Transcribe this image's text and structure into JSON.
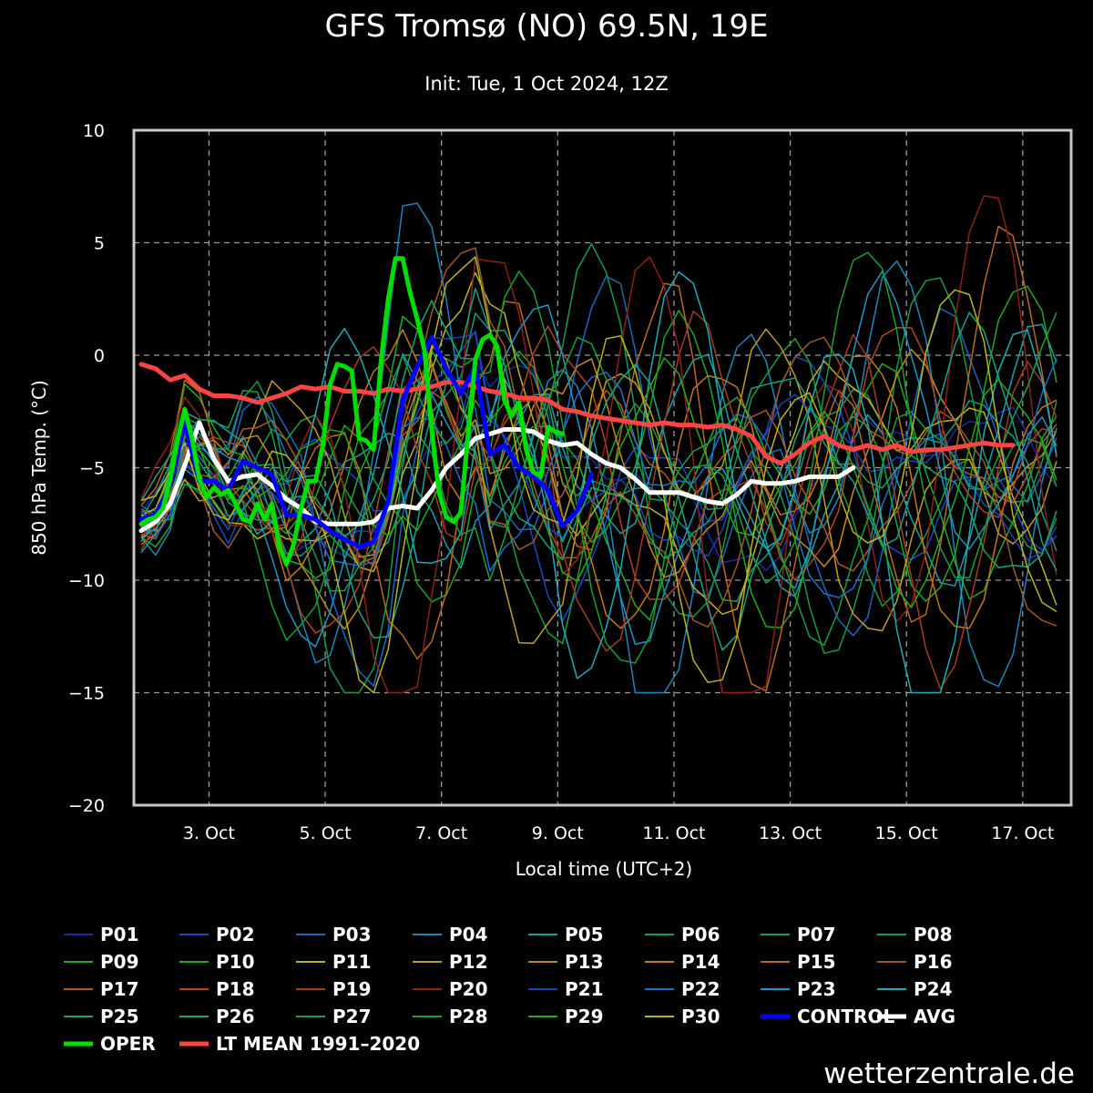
{
  "chart_data": {
    "type": "line",
    "title": "GFS Tromsø (NO) 69.5N, 19E",
    "subtitle": "Init: Tue, 1 Oct 2024, 12Z",
    "xlabel": "Local time (UTC+2)",
    "ylabel": "850 hPa Temp. (°C)",
    "x_start": "2024-10-01T20:00",
    "x_end": "2024-10-17T17:00",
    "x_step_hours": 6,
    "xlim": [
      "2024-10-01T17:00",
      "2024-10-17T20:00"
    ],
    "ylim": [
      -20,
      10
    ],
    "yticks": [
      10,
      5,
      0,
      -5,
      -10,
      -15,
      -20
    ],
    "yticklabels": [
      "10",
      "5",
      "0",
      "−5",
      "−10",
      "−15",
      "−20"
    ],
    "xticks": [
      {
        "date": "2024-10-03T00:00",
        "label": "3. Oct"
      },
      {
        "date": "2024-10-05T00:00",
        "label": "5. Oct"
      },
      {
        "date": "2024-10-07T00:00",
        "label": "7. Oct"
      },
      {
        "date": "2024-10-09T00:00",
        "label": "9. Oct"
      },
      {
        "date": "2024-10-11T00:00",
        "label": "11. Oct"
      },
      {
        "date": "2024-10-13T00:00",
        "label": "13. Oct"
      },
      {
        "date": "2024-10-15T00:00",
        "label": "15. Oct"
      },
      {
        "date": "2024-10-17T00:00",
        "label": "17. Oct"
      }
    ],
    "grid": true,
    "legend_position": "bottom",
    "series": [
      {
        "name": "OPER",
        "color": "#00dd00",
        "width": 5,
        "emphasis": true,
        "values": [
          [
            0,
            -7.5
          ],
          [
            0.5,
            -7.3
          ],
          [
            1,
            -7.2
          ],
          [
            1.5,
            -6.8
          ],
          [
            2,
            -5.5
          ],
          [
            2.5,
            -3.8
          ],
          [
            3,
            -2.4
          ],
          [
            3.5,
            -3.7
          ],
          [
            4,
            -5.5
          ],
          [
            4.5,
            -6.3
          ],
          [
            5,
            -5.9
          ],
          [
            5.5,
            -6.2
          ],
          [
            6,
            -6.0
          ],
          [
            6.5,
            -6.6
          ],
          [
            7,
            -7.3
          ],
          [
            7.5,
            -7.4
          ],
          [
            8,
            -6.6
          ],
          [
            8.5,
            -7.3
          ],
          [
            9,
            -6.6
          ],
          [
            9.5,
            -8.5
          ],
          [
            10,
            -9.3
          ],
          [
            10.5,
            -8.4
          ],
          [
            11,
            -6.8
          ],
          [
            11.5,
            -5.6
          ],
          [
            12,
            -5.6
          ],
          [
            12.5,
            -4.0
          ],
          [
            13,
            -1.3
          ],
          [
            13.5,
            -0.4
          ],
          [
            14,
            -0.5
          ],
          [
            14.5,
            -0.7
          ],
          [
            15,
            -3.7
          ],
          [
            15.5,
            -3.8
          ],
          [
            16,
            -4.2
          ],
          [
            16.5,
            -0.3
          ],
          [
            17,
            2.5
          ],
          [
            17.5,
            4.3
          ],
          [
            18,
            4.3
          ],
          [
            18.5,
            2.8
          ],
          [
            19,
            1.6
          ],
          [
            19.5,
            0.2
          ],
          [
            20,
            -3.3
          ],
          [
            20.5,
            -6.1
          ],
          [
            21,
            -7.2
          ],
          [
            21.5,
            -7.4
          ],
          [
            22,
            -7.0
          ],
          [
            22.5,
            -3.5
          ],
          [
            23,
            -0.2
          ],
          [
            23.5,
            0.7
          ],
          [
            24,
            0.9
          ],
          [
            24.5,
            0.4
          ],
          [
            25,
            -2.0
          ],
          [
            25.5,
            -2.7
          ],
          [
            26,
            -2.1
          ],
          [
            26.5,
            -4.2
          ],
          [
            27,
            -5.2
          ],
          [
            27.5,
            -5.4
          ],
          [
            28,
            -3.2
          ],
          [
            28.5,
            -3.4
          ],
          [
            29,
            -3.5
          ]
        ]
      },
      {
        "name": "CONTROL",
        "color": "#0000ff",
        "width": 5,
        "emphasis": true,
        "values": [
          [
            0,
            -7.3
          ],
          [
            1,
            -7.1
          ],
          [
            2,
            -5.8
          ],
          [
            3,
            -3.0
          ],
          [
            4,
            -5.6
          ],
          [
            5,
            -5.6
          ],
          [
            6,
            -6.0
          ],
          [
            7,
            -4.7
          ],
          [
            8,
            -5.0
          ],
          [
            9,
            -5.3
          ],
          [
            10,
            -7.1
          ],
          [
            11,
            -7.1
          ],
          [
            12,
            -7.3
          ],
          [
            13,
            -7.8
          ],
          [
            14,
            -8.2
          ],
          [
            15,
            -8.5
          ],
          [
            16,
            -8.3
          ],
          [
            17,
            -6.5
          ],
          [
            18,
            -2.0
          ],
          [
            19,
            -0.5
          ],
          [
            20,
            0.8
          ],
          [
            21,
            -0.6
          ],
          [
            22,
            -1.7
          ],
          [
            23,
            -0.5
          ],
          [
            24,
            -4.4
          ],
          [
            25,
            -4.0
          ],
          [
            26,
            -5.0
          ],
          [
            27,
            -5.4
          ],
          [
            28,
            -6.0
          ],
          [
            29,
            -7.6
          ],
          [
            30,
            -6.9
          ],
          [
            31,
            -5.3
          ]
        ]
      },
      {
        "name": "AVG",
        "color": "#ffffff",
        "width": 5,
        "emphasis": true,
        "values": [
          [
            0,
            -7.8
          ],
          [
            1,
            -7.4
          ],
          [
            2,
            -6.6
          ],
          [
            3,
            -4.9
          ],
          [
            4,
            -3.0
          ],
          [
            5,
            -4.6
          ],
          [
            6,
            -5.6
          ],
          [
            7,
            -5.4
          ],
          [
            8,
            -5.3
          ],
          [
            9,
            -5.8
          ],
          [
            10,
            -6.4
          ],
          [
            11,
            -6.8
          ],
          [
            12,
            -7.4
          ],
          [
            13,
            -7.5
          ],
          [
            14,
            -7.5
          ],
          [
            15,
            -7.5
          ],
          [
            16,
            -7.4
          ],
          [
            17,
            -6.8
          ],
          [
            18,
            -6.7
          ],
          [
            19,
            -6.8
          ],
          [
            20,
            -6.0
          ],
          [
            21,
            -5.0
          ],
          [
            22,
            -4.4
          ],
          [
            23,
            -3.7
          ],
          [
            24,
            -3.5
          ],
          [
            25,
            -3.3
          ],
          [
            26,
            -3.3
          ],
          [
            27,
            -3.4
          ],
          [
            28,
            -3.8
          ],
          [
            29,
            -4.0
          ],
          [
            30,
            -3.9
          ],
          [
            31,
            -4.4
          ],
          [
            32,
            -4.8
          ],
          [
            33,
            -5.0
          ],
          [
            34,
            -5.5
          ],
          [
            35,
            -6.1
          ],
          [
            36,
            -6.1
          ],
          [
            37,
            -6.1
          ],
          [
            38,
            -6.3
          ],
          [
            39,
            -6.5
          ],
          [
            40,
            -6.6
          ],
          [
            41,
            -6.2
          ],
          [
            42,
            -5.6
          ],
          [
            43,
            -5.7
          ],
          [
            44,
            -5.7
          ],
          [
            45,
            -5.6
          ],
          [
            46,
            -5.4
          ],
          [
            47,
            -5.4
          ],
          [
            48,
            -5.4
          ],
          [
            49,
            -5.0
          ]
        ]
      },
      {
        "name": "LT MEAN 1991–2020",
        "color": "#ff4444",
        "width": 5,
        "emphasis": true,
        "values": [
          [
            0,
            -0.4
          ],
          [
            1,
            -0.6
          ],
          [
            2,
            -1.1
          ],
          [
            3,
            -0.9
          ],
          [
            4,
            -1.5
          ],
          [
            5,
            -1.8
          ],
          [
            6,
            -1.8
          ],
          [
            7,
            -1.9
          ],
          [
            8,
            -2.1
          ],
          [
            9,
            -1.9
          ],
          [
            10,
            -1.7
          ],
          [
            11,
            -1.4
          ],
          [
            12,
            -1.5
          ],
          [
            13,
            -1.4
          ],
          [
            14,
            -1.6
          ],
          [
            15,
            -1.6
          ],
          [
            16,
            -1.7
          ],
          [
            17,
            -1.5
          ],
          [
            18,
            -1.6
          ],
          [
            19,
            -1.5
          ],
          [
            20,
            -1.4
          ],
          [
            21,
            -1.2
          ],
          [
            22,
            -1.2
          ],
          [
            23,
            -1.4
          ],
          [
            24,
            -1.6
          ],
          [
            25,
            -1.7
          ],
          [
            26,
            -1.9
          ],
          [
            27,
            -1.9
          ],
          [
            28,
            -2.0
          ],
          [
            29,
            -2.4
          ],
          [
            30,
            -2.5
          ],
          [
            31,
            -2.7
          ],
          [
            32,
            -2.8
          ],
          [
            33,
            -2.9
          ],
          [
            34,
            -3.0
          ],
          [
            35,
            -3.1
          ],
          [
            36,
            -3.0
          ],
          [
            37,
            -3.1
          ],
          [
            38,
            -3.1
          ],
          [
            39,
            -3.2
          ],
          [
            40,
            -3.1
          ],
          [
            41,
            -3.3
          ],
          [
            42,
            -3.6
          ],
          [
            43,
            -4.5
          ],
          [
            44,
            -4.8
          ],
          [
            45,
            -4.4
          ],
          [
            46,
            -3.9
          ],
          [
            47,
            -3.6
          ],
          [
            48,
            -4.0
          ],
          [
            49,
            -4.2
          ],
          [
            50,
            -4.0
          ],
          [
            51,
            -4.2
          ],
          [
            52,
            -4.0
          ],
          [
            53,
            -4.3
          ],
          [
            54,
            -4.2
          ],
          [
            55,
            -4.2
          ],
          [
            56,
            -4.1
          ],
          [
            57,
            -4.0
          ],
          [
            58,
            -3.9
          ],
          [
            59,
            -4.0
          ],
          [
            60,
            -4.0
          ]
        ]
      }
    ],
    "ensemble_members": [
      {
        "name": "P01",
        "color": "#1a2aa8"
      },
      {
        "name": "P02",
        "color": "#1a48c0"
      },
      {
        "name": "P03",
        "color": "#1e66bc"
      },
      {
        "name": "P04",
        "color": "#1e86b6"
      },
      {
        "name": "P05",
        "color": "#1c9ea8"
      },
      {
        "name": "P06",
        "color": "#169a7a"
      },
      {
        "name": "P07",
        "color": "#1c9c3c"
      },
      {
        "name": "P08",
        "color": "#189a4a"
      },
      {
        "name": "P09",
        "color": "#24a82a"
      },
      {
        "name": "P10",
        "color": "#1eaa20"
      },
      {
        "name": "P11",
        "color": "#bcb222"
      },
      {
        "name": "P12",
        "color": "#c09e22"
      },
      {
        "name": "P13",
        "color": "#c08a1c"
      },
      {
        "name": "P14",
        "color": "#c07a18"
      },
      {
        "name": "P15",
        "color": "#b86a1c"
      },
      {
        "name": "P16",
        "color": "#9c5a22"
      },
      {
        "name": "P17",
        "color": "#b05a26"
      },
      {
        "name": "P18",
        "color": "#b24620"
      },
      {
        "name": "P19",
        "color": "#a23c1c"
      },
      {
        "name": "P20",
        "color": "#8a2218"
      },
      {
        "name": "P21",
        "color": "#1a42b4"
      },
      {
        "name": "P22",
        "color": "#1c6eca"
      },
      {
        "name": "P23",
        "color": "#1c96c2"
      },
      {
        "name": "P24",
        "color": "#20aab4"
      },
      {
        "name": "P25",
        "color": "#1ca086"
      },
      {
        "name": "P26",
        "color": "#18a66a"
      },
      {
        "name": "P27",
        "color": "#1a9e44"
      },
      {
        "name": "P28",
        "color": "#18a030"
      },
      {
        "name": "P29",
        "color": "#2aa818"
      },
      {
        "name": "P30",
        "color": "#b8b41e"
      }
    ]
  },
  "footer": {
    "source": "wetterzentrale.de"
  }
}
